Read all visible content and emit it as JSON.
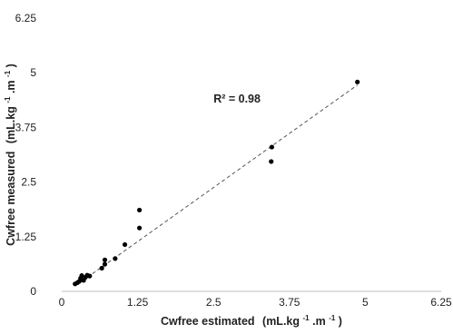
{
  "chart_data": {
    "type": "scatter",
    "title": "",
    "xlabel": "Cwfree estimated",
    "xlabel_unit": "(mL.kg",
    "xlabel_exp1": "-1",
    "xlabel_mid": ".m",
    "xlabel_exp2": "-1",
    "xlabel_end": ")",
    "ylabel": "Cwfree measured",
    "ylabel_unit": "(mL.kg",
    "ylabel_exp1": "-1",
    "ylabel_mid": ".m",
    "ylabel_exp2": "-1",
    "ylabel_end": ")",
    "xlim": [
      0,
      6.25
    ],
    "ylim": [
      0,
      6.25
    ],
    "xticks": [
      0,
      1.25,
      2.5,
      3.75,
      5,
      6.25
    ],
    "yticks": [
      0,
      1.25,
      2.5,
      3.75,
      5,
      6.25
    ],
    "xtick_labels": [
      "0",
      "1.25",
      "2.5",
      "3.75",
      "5",
      "6.25"
    ],
    "ytick_labels": [
      "0",
      "1.25",
      "2.5",
      "3.75",
      "5",
      "6.25"
    ],
    "grid": false,
    "annotation": "R² = 0.98",
    "annotation_pos": [
      2.5,
      4.4
    ],
    "trendline": {
      "x": [
        0.25,
        4.87
      ],
      "y": [
        0.15,
        4.72
      ],
      "style": "dashed"
    },
    "points": [
      {
        "x": 0.22,
        "y": 0.17
      },
      {
        "x": 0.26,
        "y": 0.2
      },
      {
        "x": 0.29,
        "y": 0.23
      },
      {
        "x": 0.31,
        "y": 0.3
      },
      {
        "x": 0.33,
        "y": 0.36
      },
      {
        "x": 0.36,
        "y": 0.25
      },
      {
        "x": 0.39,
        "y": 0.32
      },
      {
        "x": 0.42,
        "y": 0.37
      },
      {
        "x": 0.46,
        "y": 0.35
      },
      {
        "x": 0.66,
        "y": 0.53
      },
      {
        "x": 0.71,
        "y": 0.62
      },
      {
        "x": 0.71,
        "y": 0.72
      },
      {
        "x": 0.88,
        "y": 0.75
      },
      {
        "x": 1.04,
        "y": 1.07
      },
      {
        "x": 1.28,
        "y": 1.45
      },
      {
        "x": 1.28,
        "y": 1.86
      },
      {
        "x": 3.45,
        "y": 2.97
      },
      {
        "x": 3.46,
        "y": 3.3
      },
      {
        "x": 4.87,
        "y": 4.79
      }
    ]
  }
}
